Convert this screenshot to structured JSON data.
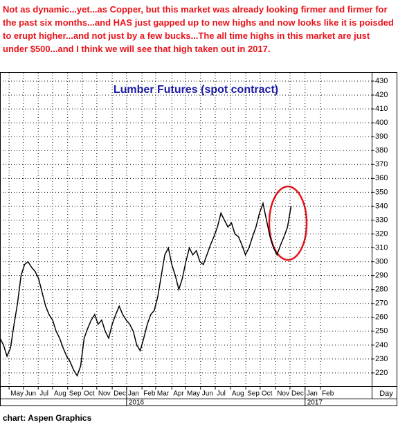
{
  "annotation": "Not as dynamic...yet...as Copper, but this market was already looking firmer and firmer for the past six months...and HAS just gapped up to new highs and now looks like it is poisded to erupt higher...and not just by a few bucks...The all time highs in this market are just under $500...and I think we will see that high taken out in 2017.",
  "source": "chart: Aspen Graphics",
  "chart_data": {
    "type": "line",
    "title": "Lumber Futures (spot contract)",
    "xlabel": "Day",
    "color": "#000000",
    "grid": true,
    "values": [
      245,
      240,
      232,
      238,
      255,
      270,
      290,
      298,
      300,
      296,
      293,
      288,
      278,
      268,
      262,
      258,
      250,
      245,
      238,
      232,
      228,
      222,
      218,
      225,
      245,
      252,
      258,
      262,
      255,
      258,
      250,
      245,
      255,
      262,
      268,
      262,
      258,
      255,
      250,
      240,
      236,
      245,
      255,
      262,
      265,
      275,
      290,
      305,
      310,
      298,
      290,
      280,
      288,
      300,
      310,
      305,
      308,
      300,
      298,
      305,
      312,
      318,
      325,
      335,
      330,
      325,
      328,
      320,
      318,
      312,
      305,
      310,
      318,
      325,
      335,
      342,
      330,
      318,
      310,
      305,
      312,
      318,
      325,
      340
    ],
    "xlim": [
      0,
      106
    ],
    "xticks": [
      {
        "value": 2.6,
        "label": "May"
      },
      {
        "value": 6.7,
        "label": "Jun"
      },
      {
        "value": 10.9,
        "label": "Jul"
      },
      {
        "value": 15,
        "label": "Aug"
      },
      {
        "value": 19.3,
        "label": "Sep"
      },
      {
        "value": 23.5,
        "label": "Oct"
      },
      {
        "value": 27.6,
        "label": "Nov"
      },
      {
        "value": 32,
        "label": "Dec"
      },
      {
        "value": 36.1,
        "label": "Jan"
      },
      {
        "value": 40.5,
        "label": "Feb"
      },
      {
        "value": 44.4,
        "label": "Mar"
      },
      {
        "value": 49,
        "label": "Apr"
      },
      {
        "value": 52.9,
        "label": "May"
      },
      {
        "value": 57.2,
        "label": "Jun"
      },
      {
        "value": 61.4,
        "label": "Jul"
      },
      {
        "value": 65.7,
        "label": "Aug"
      },
      {
        "value": 70.1,
        "label": "Sep"
      },
      {
        "value": 74.2,
        "label": "Oct"
      },
      {
        "value": 78.6,
        "label": "Nov"
      },
      {
        "value": 82.7,
        "label": "Dec"
      },
      {
        "value": 87,
        "label": "Jan"
      },
      {
        "value": 91.4,
        "label": "Feb"
      }
    ],
    "year_ticks": [
      {
        "value": 36.1,
        "label": "2016"
      },
      {
        "value": 87,
        "label": "2017"
      }
    ],
    "ylim": [
      210.5,
      436
    ],
    "yticks": [
      220,
      230,
      240,
      250,
      260,
      270,
      280,
      290,
      300,
      310,
      320,
      330,
      340,
      350,
      360,
      370,
      380,
      390,
      400,
      410,
      420,
      430
    ]
  }
}
